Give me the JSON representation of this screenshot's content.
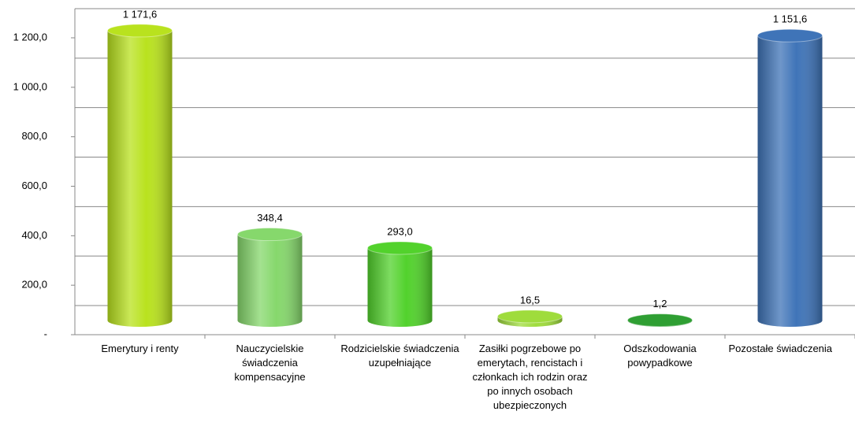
{
  "chart_data": {
    "type": "cylinder",
    "categories": [
      "Emerytury i renty",
      "Nauczycielskie świadczenia kompensacyjne",
      "Rodzicielskie świadczenia uzupełniające",
      "Zasiłki pogrzebowe po emerytach, rencistach i członkach ich rodzin oraz po innych osobach ubezpieczonych",
      "Odszkodowania powypadkowe",
      "Pozostałe świadczenia"
    ],
    "values": [
      1171.6,
      348.4,
      293.0,
      16.5,
      1.2,
      1151.6
    ],
    "value_labels": [
      "1 171,6",
      "348,4",
      "293,0",
      "16,5",
      "1,2",
      "1 151,6"
    ],
    "colors": [
      "#b9e21e",
      "#86d86c",
      "#52d22c",
      "#9fdc3c",
      "#2f9f33",
      "#3f74b8"
    ],
    "ylim": [
      0,
      1200
    ],
    "yticks": [
      {
        "value": 0,
        "label": "-"
      },
      {
        "value": 200,
        "label": "200,0"
      },
      {
        "value": 400,
        "label": "400,0"
      },
      {
        "value": 600,
        "label": "600,0"
      },
      {
        "value": 800,
        "label": "800,0"
      },
      {
        "value": 1000,
        "label": "1 000,0"
      },
      {
        "value": 1200,
        "label": "1 200,0"
      }
    ],
    "grid": true
  }
}
